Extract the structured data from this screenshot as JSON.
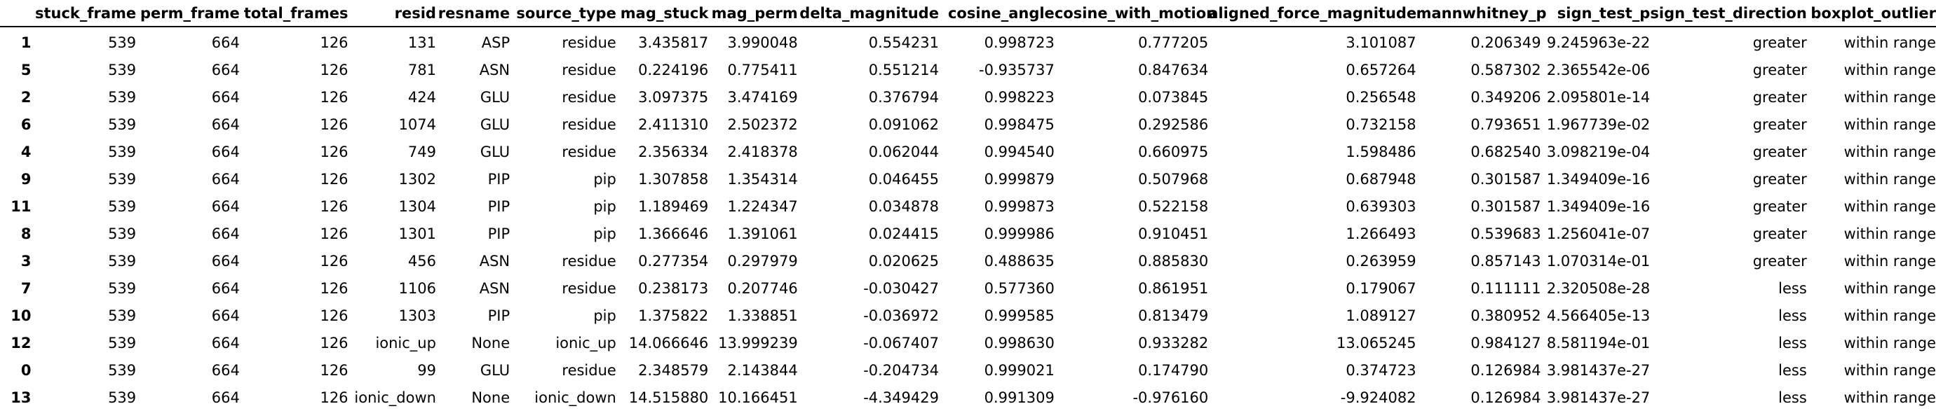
{
  "table": {
    "columns": [
      "",
      "stuck_frame",
      "perm_frame",
      "total_frames",
      "resid",
      "resname",
      "source_type",
      "mag_stuck",
      "mag_perm",
      "delta_magnitude",
      "cosine_angle",
      "cosine_with_motion",
      "aligned_force_magnitude",
      "mannwhitney_p",
      "sign_test_p",
      "sign_test_direction",
      "boxplot_outlier"
    ],
    "rows": [
      [
        "1",
        "539",
        "664",
        "126",
        "131",
        "ASP",
        "residue",
        "3.435817",
        "3.990048",
        "0.554231",
        "0.998723",
        "0.777205",
        "3.101087",
        "0.206349",
        "9.245963e-22",
        "greater",
        "within range"
      ],
      [
        "5",
        "539",
        "664",
        "126",
        "781",
        "ASN",
        "residue",
        "0.224196",
        "0.775411",
        "0.551214",
        "-0.935737",
        "0.847634",
        "0.657264",
        "0.587302",
        "2.365542e-06",
        "greater",
        "within range"
      ],
      [
        "2",
        "539",
        "664",
        "126",
        "424",
        "GLU",
        "residue",
        "3.097375",
        "3.474169",
        "0.376794",
        "0.998223",
        "0.073845",
        "0.256548",
        "0.349206",
        "2.095801e-14",
        "greater",
        "within range"
      ],
      [
        "6",
        "539",
        "664",
        "126",
        "1074",
        "GLU",
        "residue",
        "2.411310",
        "2.502372",
        "0.091062",
        "0.998475",
        "0.292586",
        "0.732158",
        "0.793651",
        "1.967739e-02",
        "greater",
        "within range"
      ],
      [
        "4",
        "539",
        "664",
        "126",
        "749",
        "GLU",
        "residue",
        "2.356334",
        "2.418378",
        "0.062044",
        "0.994540",
        "0.660975",
        "1.598486",
        "0.682540",
        "3.098219e-04",
        "greater",
        "within range"
      ],
      [
        "9",
        "539",
        "664",
        "126",
        "1302",
        "PIP",
        "pip",
        "1.307858",
        "1.354314",
        "0.046455",
        "0.999879",
        "0.507968",
        "0.687948",
        "0.301587",
        "1.349409e-16",
        "greater",
        "within range"
      ],
      [
        "11",
        "539",
        "664",
        "126",
        "1304",
        "PIP",
        "pip",
        "1.189469",
        "1.224347",
        "0.034878",
        "0.999873",
        "0.522158",
        "0.639303",
        "0.301587",
        "1.349409e-16",
        "greater",
        "within range"
      ],
      [
        "8",
        "539",
        "664",
        "126",
        "1301",
        "PIP",
        "pip",
        "1.366646",
        "1.391061",
        "0.024415",
        "0.999986",
        "0.910451",
        "1.266493",
        "0.539683",
        "1.256041e-07",
        "greater",
        "within range"
      ],
      [
        "3",
        "539",
        "664",
        "126",
        "456",
        "ASN",
        "residue",
        "0.277354",
        "0.297979",
        "0.020625",
        "0.488635",
        "0.885830",
        "0.263959",
        "0.857143",
        "1.070314e-01",
        "greater",
        "within range"
      ],
      [
        "7",
        "539",
        "664",
        "126",
        "1106",
        "ASN",
        "residue",
        "0.238173",
        "0.207746",
        "-0.030427",
        "0.577360",
        "0.861951",
        "0.179067",
        "0.111111",
        "2.320508e-28",
        "less",
        "within range"
      ],
      [
        "10",
        "539",
        "664",
        "126",
        "1303",
        "PIP",
        "pip",
        "1.375822",
        "1.338851",
        "-0.036972",
        "0.999585",
        "0.813479",
        "1.089127",
        "0.380952",
        "4.566405e-13",
        "less",
        "within range"
      ],
      [
        "12",
        "539",
        "664",
        "126",
        "ionic_up",
        "None",
        "ionic_up",
        "14.066646",
        "13.999239",
        "-0.067407",
        "0.998630",
        "0.933282",
        "13.065245",
        "0.984127",
        "8.581194e-01",
        "less",
        "within range"
      ],
      [
        "0",
        "539",
        "664",
        "126",
        "99",
        "GLU",
        "residue",
        "2.348579",
        "2.143844",
        "-0.204734",
        "0.999021",
        "0.174790",
        "0.374723",
        "0.126984",
        "3.981437e-27",
        "less",
        "within range"
      ],
      [
        "13",
        "539",
        "664",
        "126",
        "ionic_down",
        "None",
        "ionic_down",
        "14.515880",
        "10.166451",
        "-4.349429",
        "0.991309",
        "-0.976160",
        "-9.924082",
        "0.126984",
        "3.981437e-27",
        "less",
        "within range"
      ]
    ]
  }
}
